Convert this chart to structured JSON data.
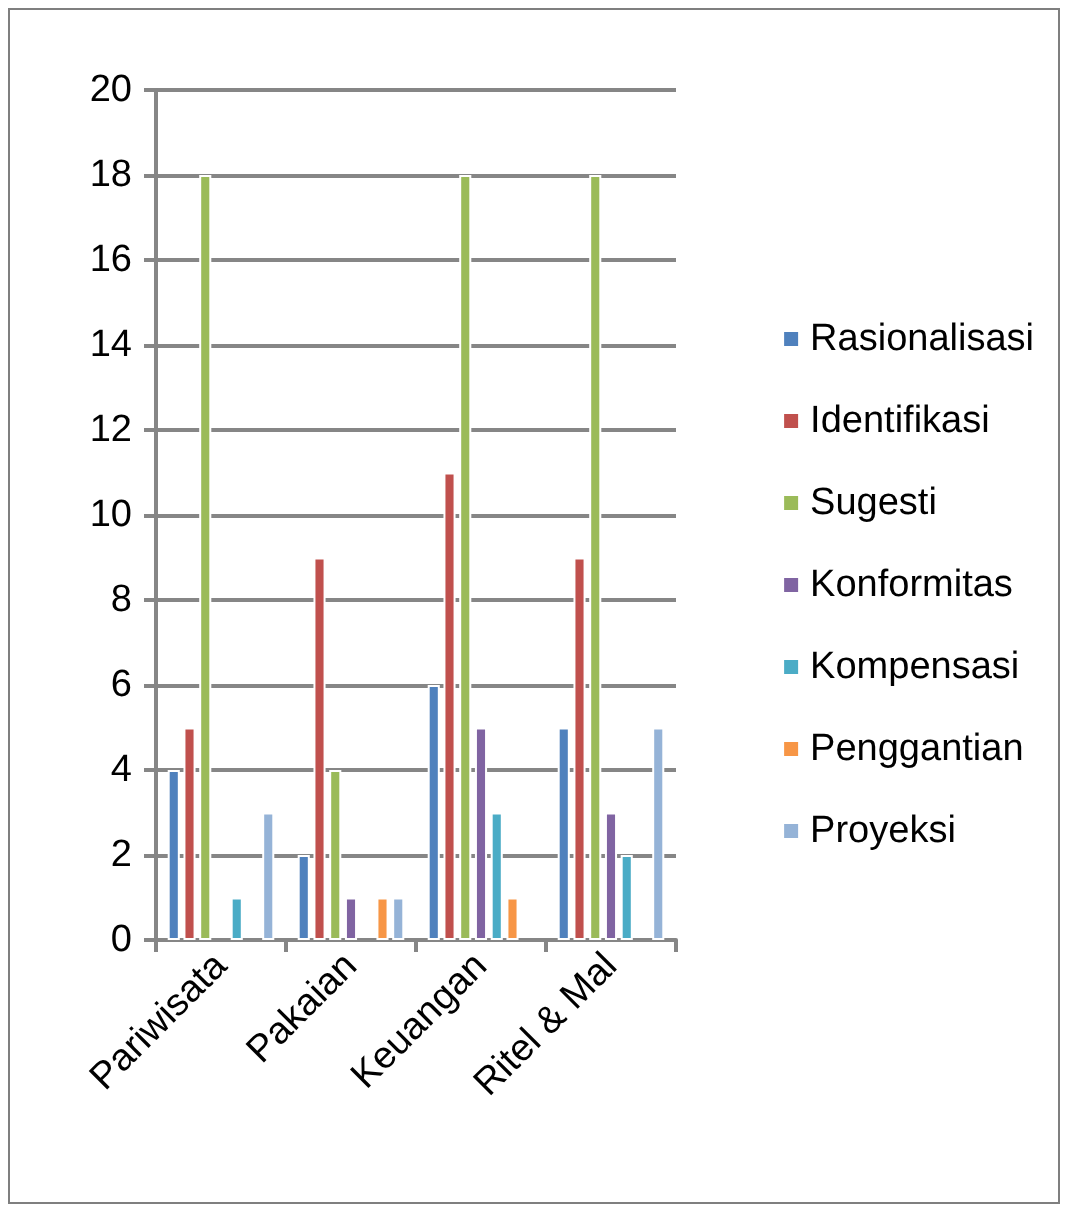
{
  "chart_data": {
    "type": "bar",
    "categories": [
      "Pariwisata",
      "Pakaian",
      "Keuangan",
      "Ritel & Mal"
    ],
    "series": [
      {
        "name": "Rasionalisasi",
        "color": "#4f81bd",
        "values": [
          4,
          2,
          6,
          5
        ]
      },
      {
        "name": "Identifikasi",
        "color": "#c0504d",
        "values": [
          5,
          9,
          11,
          9
        ]
      },
      {
        "name": "Sugesti",
        "color": "#9bbb59",
        "values": [
          18,
          4,
          18,
          18
        ]
      },
      {
        "name": "Konformitas",
        "color": "#8064a2",
        "values": [
          0,
          1,
          5,
          3
        ]
      },
      {
        "name": "Kompensasi",
        "color": "#4bacc6",
        "values": [
          1,
          0,
          3,
          2
        ]
      },
      {
        "name": "Penggantian",
        "color": "#f79646",
        "values": [
          0,
          1,
          1,
          0
        ]
      },
      {
        "name": "Proyeksi",
        "color": "#95b3d7",
        "values": [
          3,
          1,
          0,
          5
        ]
      }
    ],
    "ylim": [
      0,
      20
    ],
    "yticks": [
      0,
      2,
      4,
      6,
      8,
      10,
      12,
      14,
      16,
      18,
      20
    ],
    "grid": "y",
    "legend": "right"
  }
}
